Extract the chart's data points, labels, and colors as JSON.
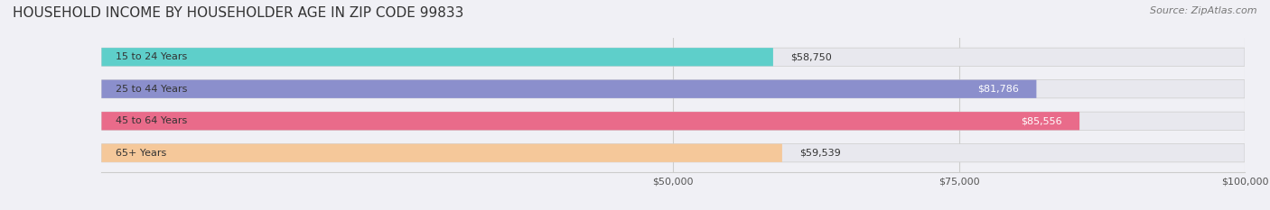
{
  "title": "HOUSEHOLD INCOME BY HOUSEHOLDER AGE IN ZIP CODE 99833",
  "source": "Source: ZipAtlas.com",
  "categories": [
    "15 to 24 Years",
    "25 to 44 Years",
    "45 to 64 Years",
    "65+ Years"
  ],
  "values": [
    58750,
    81786,
    85556,
    59539
  ],
  "bar_colors": [
    "#5ecfca",
    "#8b8fcc",
    "#e96b8a",
    "#f5c89a"
  ],
  "bar_label_colors": [
    "#333333",
    "#ffffff",
    "#ffffff",
    "#333333"
  ],
  "xlim": [
    0,
    100000
  ],
  "xticks": [
    50000,
    75000,
    100000
  ],
  "xtick_labels": [
    "$50,000",
    "$75,000",
    "$100,000"
  ],
  "background_color": "#f0f0f5",
  "bar_bg_color": "#e8e8ee",
  "title_fontsize": 11,
  "source_fontsize": 8,
  "bar_height": 0.55,
  "figsize": [
    14.06,
    2.33
  ],
  "dpi": 100
}
